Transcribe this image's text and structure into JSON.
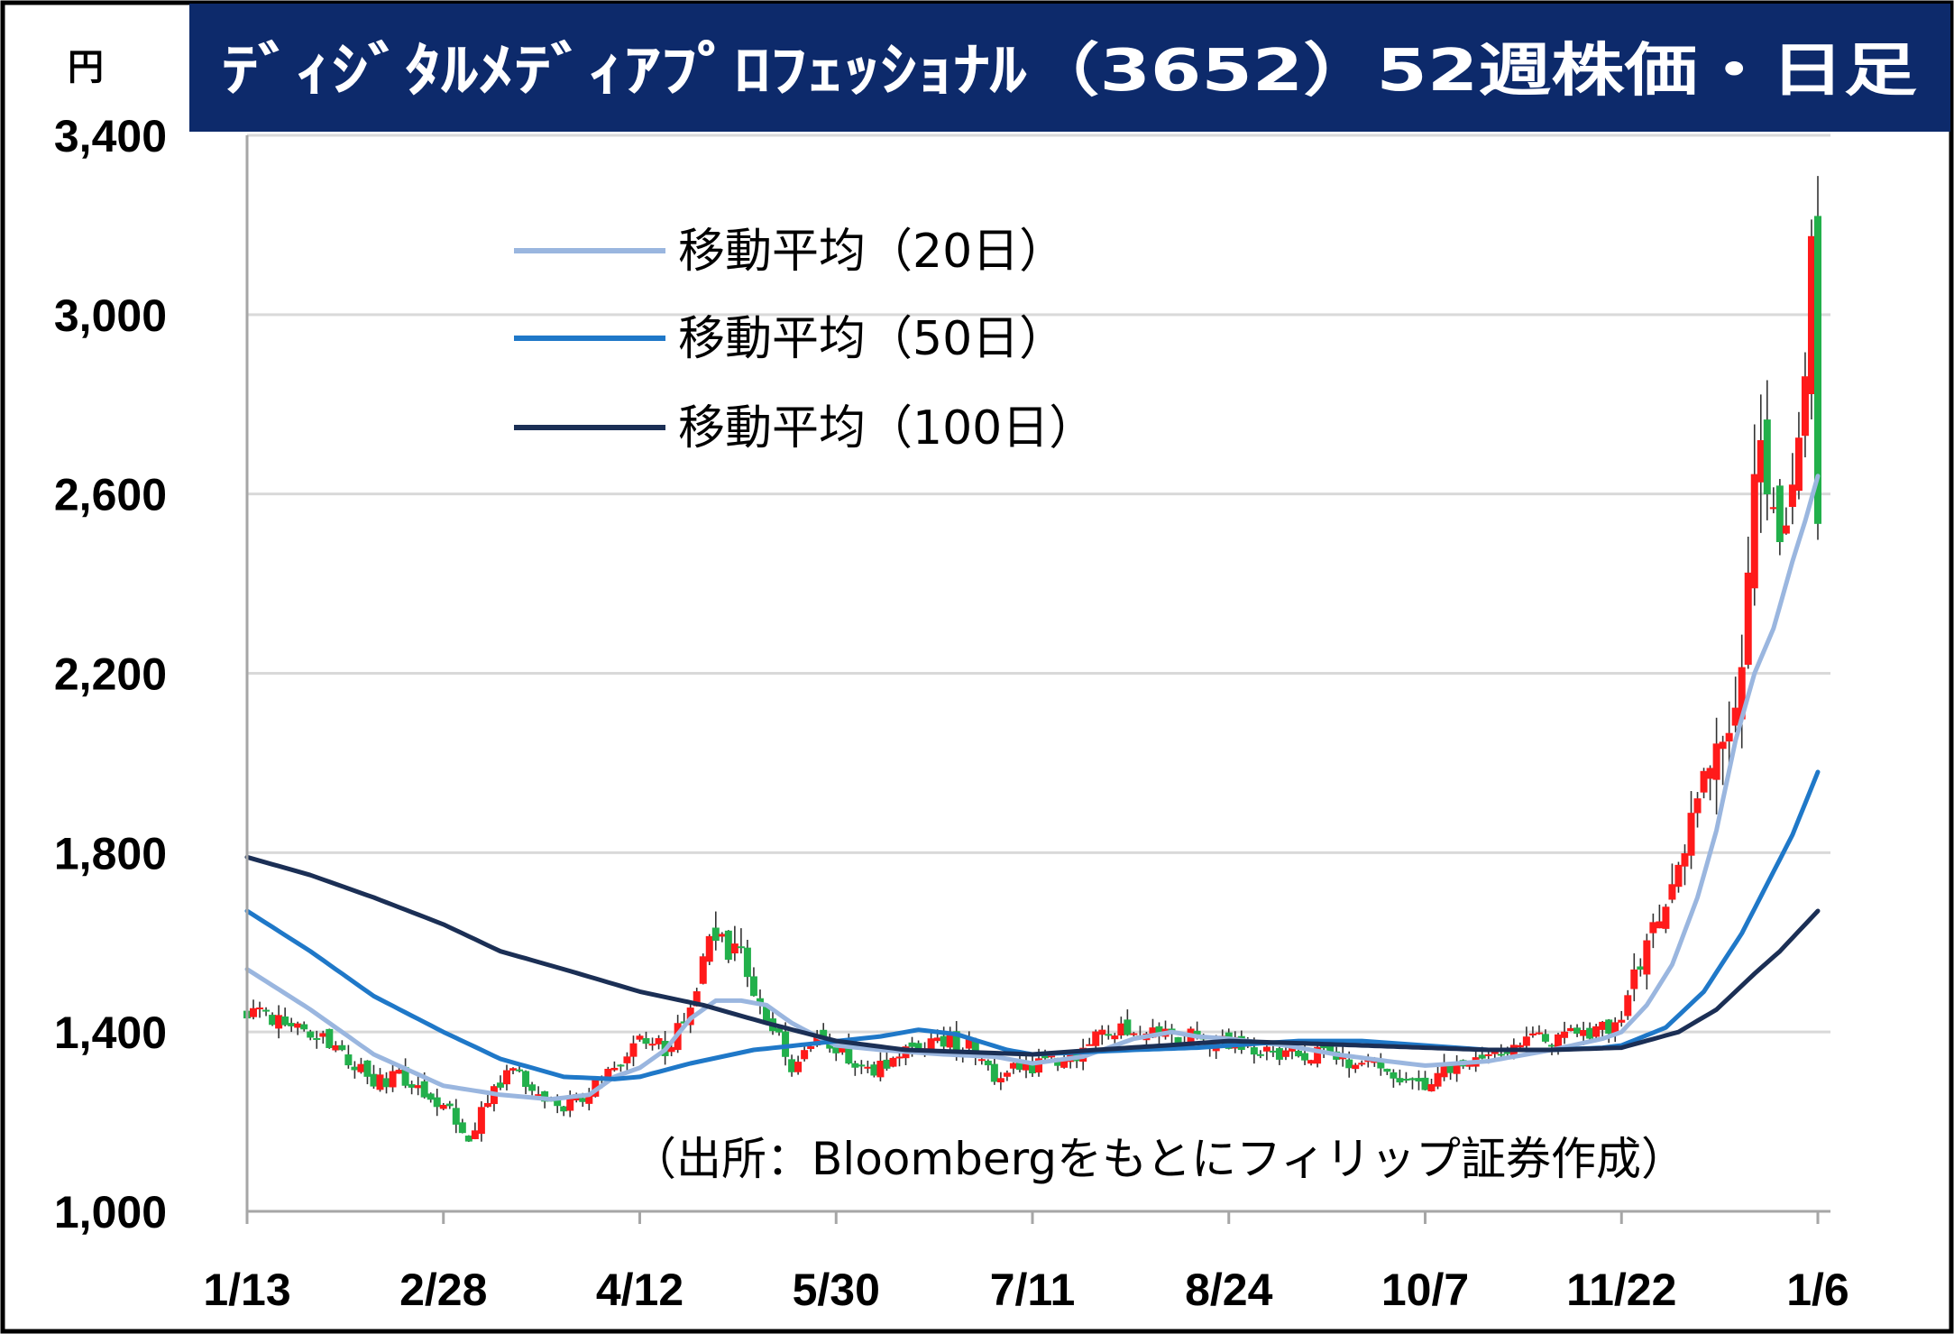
{
  "header": {
    "title": "ﾃﾞｨｼﾞﾀﾙﾒﾃﾞｨｱﾌﾟﾛﾌｪｯｼｮﾅﾙ（3652）52週株価・日足",
    "unit": "円"
  },
  "source": "（出所：Bloombergをもとにフィリップ証券作成）",
  "colors": {
    "header_bg": "#0d2a6b",
    "up": "#ff1a1a",
    "down": "#22b04b",
    "wick": "#333333",
    "ma20": "#9ab6df",
    "ma50": "#1f78c8",
    "ma100": "#1b2f55",
    "grid": "#d9d9d9",
    "axis": "#a6a6a6"
  },
  "chart_data": {
    "type": "candlestick",
    "ylim": [
      1000,
      3400
    ],
    "yticks": [
      1000,
      1400,
      1800,
      2200,
      2600,
      3000,
      3400
    ],
    "ytick_labels": [
      "1,000",
      "1,400",
      "1,800",
      "2,200",
      "2,600",
      "3,000",
      "3,400"
    ],
    "grid": true,
    "x_tick_labels": [
      "1/13",
      "2/28",
      "4/12",
      "5/30",
      "7/11",
      "8/24",
      "10/7",
      "11/22",
      "1/6"
    ],
    "x_tick_index": [
      0,
      31,
      62,
      93,
      124,
      155,
      186,
      217,
      248
    ],
    "num_days": 249,
    "anchors": [
      [
        0,
        1450
      ],
      [
        8,
        1420
      ],
      [
        14,
        1360
      ],
      [
        20,
        1290
      ],
      [
        24,
        1300
      ],
      [
        30,
        1240
      ],
      [
        31,
        1250
      ],
      [
        35,
        1170
      ],
      [
        38,
        1250
      ],
      [
        42,
        1330
      ],
      [
        46,
        1250
      ],
      [
        50,
        1235
      ],
      [
        54,
        1270
      ],
      [
        58,
        1320
      ],
      [
        62,
        1390
      ],
      [
        66,
        1360
      ],
      [
        70,
        1460
      ],
      [
        74,
        1620
      ],
      [
        78,
        1560
      ],
      [
        82,
        1440
      ],
      [
        86,
        1320
      ],
      [
        90,
        1400
      ],
      [
        93,
        1370
      ],
      [
        98,
        1310
      ],
      [
        104,
        1350
      ],
      [
        110,
        1380
      ],
      [
        114,
        1370
      ],
      [
        118,
        1300
      ],
      [
        124,
        1325
      ],
      [
        130,
        1340
      ],
      [
        136,
        1410
      ],
      [
        142,
        1395
      ],
      [
        148,
        1390
      ],
      [
        155,
        1380
      ],
      [
        160,
        1360
      ],
      [
        166,
        1355
      ],
      [
        172,
        1340
      ],
      [
        178,
        1320
      ],
      [
        182,
        1300
      ],
      [
        186,
        1285
      ],
      [
        190,
        1325
      ],
      [
        196,
        1350
      ],
      [
        202,
        1380
      ],
      [
        208,
        1390
      ],
      [
        212,
        1395
      ],
      [
        216,
        1410
      ],
      [
        217,
        1420
      ],
      [
        220,
        1560
      ],
      [
        223,
        1680
      ],
      [
        226,
        1760
      ],
      [
        229,
        1900
      ],
      [
        232,
        2050
      ],
      [
        235,
        2150
      ],
      [
        237,
        2450
      ],
      [
        239,
        2700
      ],
      [
        241,
        2500
      ],
      [
        243,
        2600
      ],
      [
        245,
        2730
      ],
      [
        247,
        3100
      ],
      [
        248,
        2600
      ]
    ],
    "series": [
      {
        "name": "移動平均（20日）",
        "values": [
          [
            0,
            1540
          ],
          [
            10,
            1450
          ],
          [
            20,
            1350
          ],
          [
            31,
            1280
          ],
          [
            40,
            1260
          ],
          [
            48,
            1250
          ],
          [
            54,
            1260
          ],
          [
            58,
            1300
          ],
          [
            62,
            1320
          ],
          [
            66,
            1360
          ],
          [
            70,
            1430
          ],
          [
            74,
            1470
          ],
          [
            78,
            1470
          ],
          [
            82,
            1460
          ],
          [
            86,
            1420
          ],
          [
            90,
            1390
          ],
          [
            93,
            1370
          ],
          [
            100,
            1360
          ],
          [
            110,
            1350
          ],
          [
            118,
            1345
          ],
          [
            124,
            1330
          ],
          [
            132,
            1345
          ],
          [
            140,
            1385
          ],
          [
            146,
            1400
          ],
          [
            150,
            1390
          ],
          [
            155,
            1385
          ],
          [
            164,
            1370
          ],
          [
            172,
            1350
          ],
          [
            180,
            1335
          ],
          [
            186,
            1325
          ],
          [
            196,
            1335
          ],
          [
            206,
            1360
          ],
          [
            214,
            1385
          ],
          [
            217,
            1400
          ],
          [
            221,
            1460
          ],
          [
            225,
            1550
          ],
          [
            229,
            1700
          ],
          [
            232,
            1850
          ],
          [
            235,
            2050
          ],
          [
            238,
            2200
          ],
          [
            241,
            2300
          ],
          [
            244,
            2450
          ],
          [
            246,
            2540
          ],
          [
            248,
            2640
          ]
        ]
      },
      {
        "name": "移動平均（50日）",
        "values": [
          [
            0,
            1670
          ],
          [
            10,
            1580
          ],
          [
            20,
            1480
          ],
          [
            31,
            1400
          ],
          [
            40,
            1340
          ],
          [
            50,
            1300
          ],
          [
            58,
            1295
          ],
          [
            62,
            1300
          ],
          [
            70,
            1330
          ],
          [
            80,
            1360
          ],
          [
            90,
            1375
          ],
          [
            100,
            1390
          ],
          [
            106,
            1405
          ],
          [
            112,
            1395
          ],
          [
            120,
            1360
          ],
          [
            124,
            1350
          ],
          [
            132,
            1355
          ],
          [
            140,
            1360
          ],
          [
            150,
            1365
          ],
          [
            155,
            1370
          ],
          [
            166,
            1380
          ],
          [
            176,
            1380
          ],
          [
            186,
            1370
          ],
          [
            196,
            1360
          ],
          [
            206,
            1360
          ],
          [
            214,
            1365
          ],
          [
            217,
            1370
          ],
          [
            224,
            1410
          ],
          [
            230,
            1490
          ],
          [
            236,
            1620
          ],
          [
            240,
            1730
          ],
          [
            244,
            1840
          ],
          [
            248,
            1980
          ]
        ]
      },
      {
        "name": "移動平均（100日）",
        "values": [
          [
            0,
            1790
          ],
          [
            10,
            1750
          ],
          [
            20,
            1700
          ],
          [
            31,
            1640
          ],
          [
            40,
            1580
          ],
          [
            50,
            1540
          ],
          [
            62,
            1490
          ],
          [
            72,
            1460
          ],
          [
            82,
            1420
          ],
          [
            93,
            1380
          ],
          [
            104,
            1360
          ],
          [
            114,
            1355
          ],
          [
            124,
            1350
          ],
          [
            134,
            1360
          ],
          [
            145,
            1370
          ],
          [
            155,
            1380
          ],
          [
            166,
            1375
          ],
          [
            176,
            1370
          ],
          [
            186,
            1365
          ],
          [
            196,
            1360
          ],
          [
            206,
            1360
          ],
          [
            217,
            1365
          ],
          [
            226,
            1400
          ],
          [
            232,
            1450
          ],
          [
            238,
            1530
          ],
          [
            242,
            1580
          ],
          [
            246,
            1640
          ],
          [
            248,
            1670
          ]
        ]
      }
    ]
  }
}
